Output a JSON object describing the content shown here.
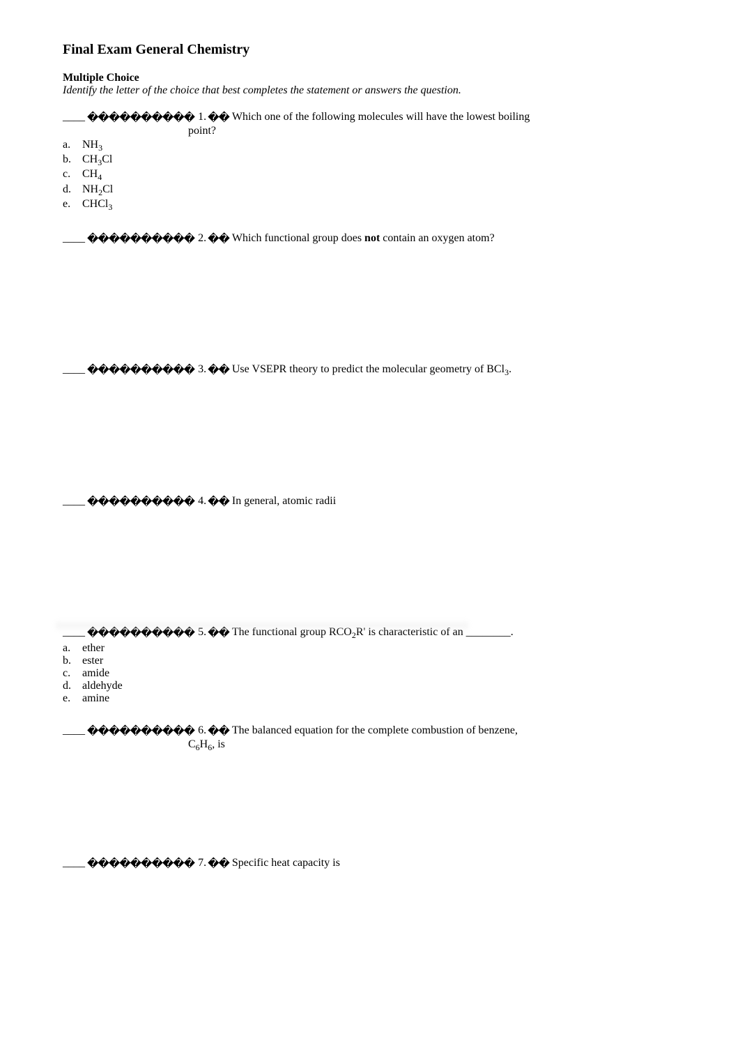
{
  "title": "Final Exam General Chemistry",
  "section_heading": "Multiple Choice",
  "instruction": "Identify the letter of the choice that best completes the statement or answers the question.",
  "blank": "____",
  "diamonds10": " ���������� ",
  "diamonds2": "��",
  "questions": {
    "q1": {
      "num": "1.",
      "text_a": "Which one of the following molecules will have the lowest boiling",
      "text_b": "point?",
      "options": {
        "a": {
          "letter": "a.",
          "text_html": "NH<sub>3</sub>"
        },
        "b": {
          "letter": "b.",
          "text_html": "CH<sub>3</sub>Cl"
        },
        "c": {
          "letter": "c.",
          "text_html": "CH<sub>4</sub>"
        },
        "d": {
          "letter": "d.",
          "text_html": "NH<sub>2</sub>Cl"
        },
        "e": {
          "letter": "e.",
          "text_html": "CHCl<sub>3</sub>"
        }
      }
    },
    "q2": {
      "num": "2.",
      "text_pre": "Which functional group does ",
      "text_bold": "not",
      "text_post": " contain an oxygen atom?"
    },
    "q3": {
      "num": "3.",
      "text_html": "Use VSEPR theory to predict the molecular geometry of BCl<sub>3</sub>."
    },
    "q4": {
      "num": "4.",
      "text": "In general, atomic radii"
    },
    "q5": {
      "num": "5.",
      "text_pre_html": "The functional group RCO<sub>2</sub>R' is characteristic of an ",
      "blank_long": "________",
      "text_post": ".",
      "options": {
        "a": {
          "letter": "a.",
          "text": "ether"
        },
        "b": {
          "letter": "b.",
          "text": "ester"
        },
        "c": {
          "letter": "c.",
          "text": "amide"
        },
        "d": {
          "letter": "d.",
          "text": "aldehyde"
        },
        "e": {
          "letter": "e.",
          "text": "amine"
        }
      }
    },
    "q6": {
      "num": "6.",
      "text_a": "The balanced equation for the complete combustion of benzene,",
      "text_b_html": "C<sub>6</sub>H<sub>6</sub>, is"
    },
    "q7": {
      "num": "7.",
      "text": "Specific heat capacity is"
    }
  }
}
